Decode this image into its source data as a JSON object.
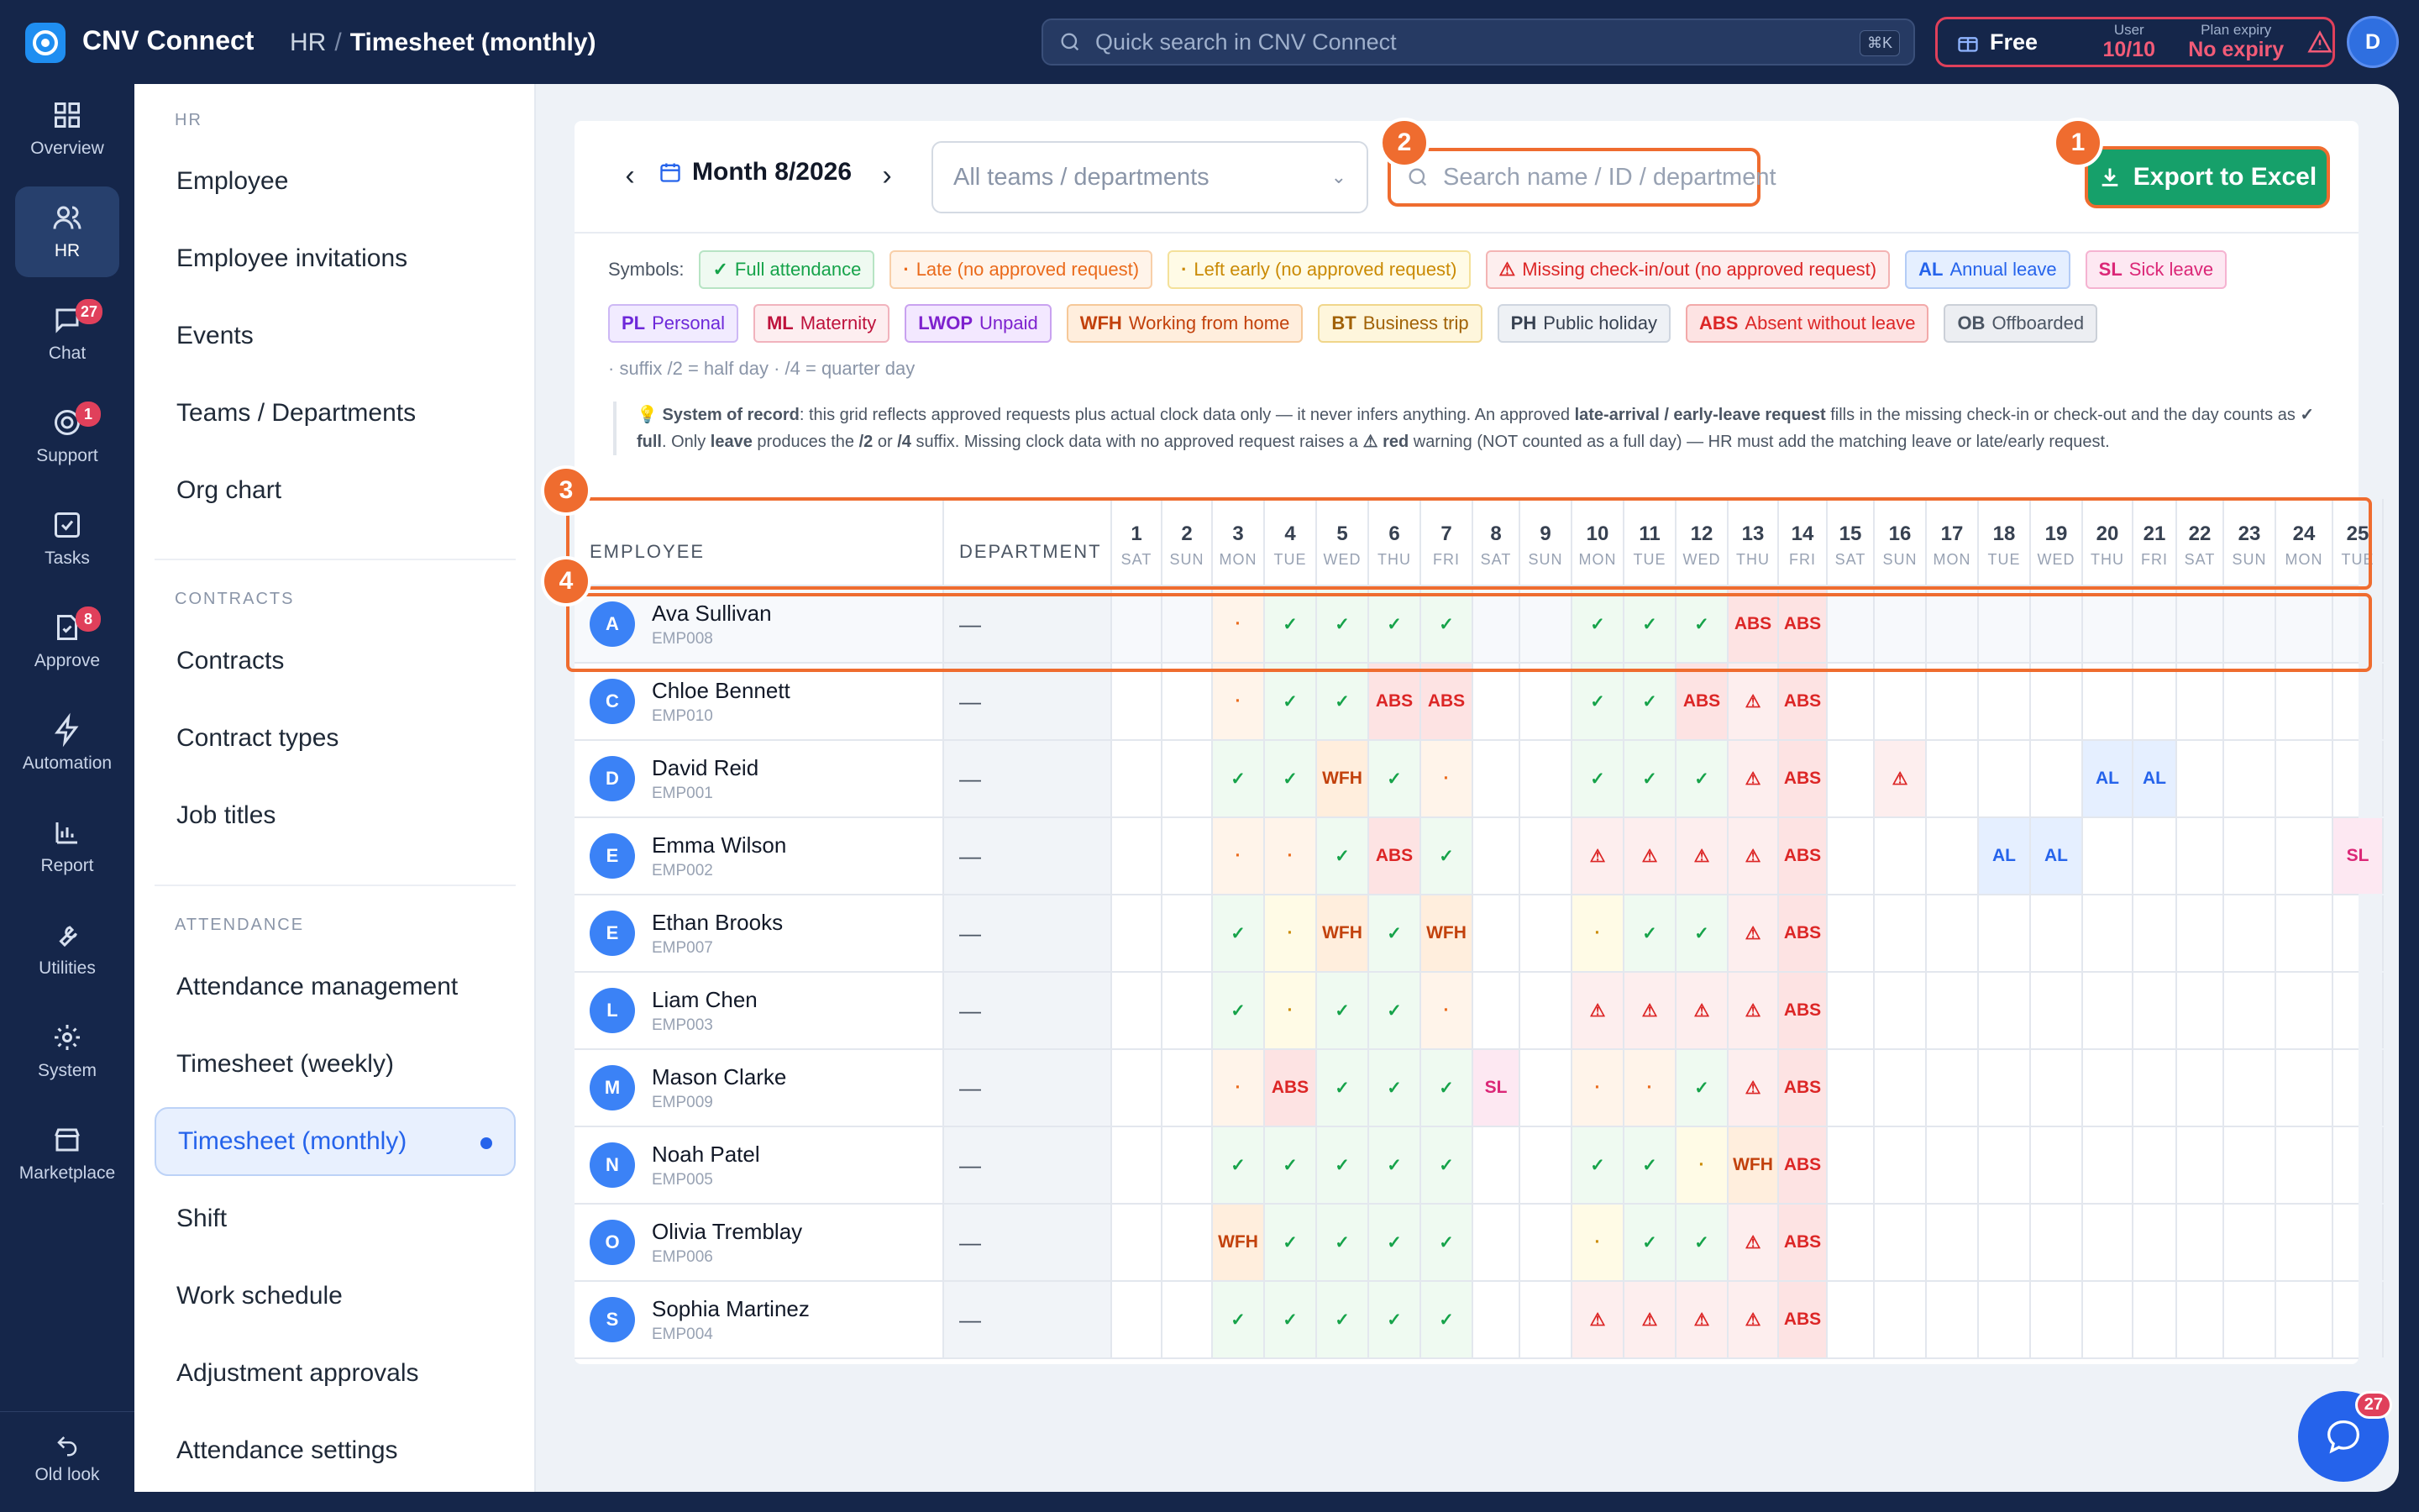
{
  "app": {
    "name": "CNV Connect",
    "breadcrumb": [
      "HR",
      "Timesheet (monthly)"
    ]
  },
  "topbar": {
    "search_placeholder": "Quick search in CNV Connect",
    "search_kbd": "⌘K",
    "plan": "Free",
    "user_label": "User",
    "user_value": "10/10",
    "expiry_label": "Plan expiry",
    "expiry_value": "No expiry",
    "avatar": "D"
  },
  "rail": [
    {
      "label": "Overview",
      "icon": "grid-icon"
    },
    {
      "label": "HR",
      "icon": "users-icon",
      "active": true
    },
    {
      "label": "Chat",
      "icon": "chat-icon",
      "badge": "27"
    },
    {
      "label": "Support",
      "icon": "support-icon",
      "badge": "1"
    },
    {
      "label": "Tasks",
      "icon": "task-icon"
    },
    {
      "label": "Approve",
      "icon": "approve-icon",
      "badge": "8"
    },
    {
      "label": "Automation",
      "icon": "bolt-icon"
    },
    {
      "label": "Report",
      "icon": "chart-icon"
    },
    {
      "label": "Utilities",
      "icon": "wrench-icon"
    },
    {
      "label": "System",
      "icon": "gear-icon"
    },
    {
      "label": "Marketplace",
      "icon": "store-icon"
    }
  ],
  "old_look": "Old look",
  "sidebar": {
    "sections": [
      {
        "title": "HR",
        "items": [
          "Employee",
          "Employee invitations",
          "Events",
          "Teams / Departments",
          "Org chart"
        ]
      },
      {
        "title": "CONTRACTS",
        "items": [
          "Contracts",
          "Contract types",
          "Job titles"
        ]
      },
      {
        "title": "ATTENDANCE",
        "items": [
          "Attendance management",
          "Timesheet (weekly)",
          "Timesheet (monthly)",
          "Shift",
          "Work schedule",
          "Adjustment approvals",
          "Attendance settings"
        ]
      }
    ],
    "active": "Timesheet (monthly)"
  },
  "toolbar": {
    "month": "Month 8/2026",
    "team_select": "All teams / departments",
    "search_placeholder": "Search name / ID / department",
    "export": "Export to Excel"
  },
  "callouts": [
    "1",
    "2",
    "3",
    "4"
  ],
  "symbols_label": "Symbols:",
  "symbols": [
    {
      "code": "✓",
      "text": "Full attendance",
      "cls": "ok"
    },
    {
      "code": "·",
      "text": "Late (no approved request)",
      "cls": "late"
    },
    {
      "code": "·",
      "text": "Left early (no approved request)",
      "cls": "early"
    },
    {
      "code": "⚠",
      "text": "Missing check-in/out (no approved request)",
      "cls": "miss"
    },
    {
      "code": "AL",
      "text": "Annual leave",
      "cls": "al"
    },
    {
      "code": "SL",
      "text": "Sick leave",
      "cls": "sl"
    },
    {
      "code": "PL",
      "text": "Personal",
      "cls": "pl"
    },
    {
      "code": "ML",
      "text": "Maternity",
      "cls": "ml"
    },
    {
      "code": "LWOP",
      "text": "Unpaid",
      "cls": "lwop"
    },
    {
      "code": "WFH",
      "text": "Working from home",
      "cls": "wfh"
    },
    {
      "code": "BT",
      "text": "Business trip",
      "cls": "bt"
    },
    {
      "code": "PH",
      "text": "Public holiday",
      "cls": "ph"
    },
    {
      "code": "ABS",
      "text": "Absent without leave",
      "cls": "abs"
    },
    {
      "code": "OB",
      "text": "Offboarded",
      "cls": "ob"
    }
  ],
  "suffix_note": "· suffix /2 = half day · /4 = quarter day",
  "system_note": {
    "lead": "System of record",
    "t1": ": this grid reflects approved requests plus actual clock data only — it never infers anything. An approved ",
    "b1": "late-arrival / early-leave request",
    "t2": " fills in the missing check-in or check-out and the day counts as ",
    "b2": "✓ full",
    "t3": ". Only ",
    "b3": "leave",
    "t4": " produces the ",
    "b4": "/2",
    "t5": " or ",
    "b5": "/4",
    "t6": " suffix. Missing clock data with no approved request raises a ",
    "b6": "⚠ red",
    "t7": " warning (NOT counted as a full day) — HR must add the matching leave or late/early request."
  },
  "grid": {
    "col_employee": "EMPLOYEE",
    "col_department": "DEPARTMENT",
    "days": [
      [
        "1",
        "SAT"
      ],
      [
        "2",
        "SUN"
      ],
      [
        "3",
        "MON"
      ],
      [
        "4",
        "TUE"
      ],
      [
        "5",
        "WED"
      ],
      [
        "6",
        "THU"
      ],
      [
        "7",
        "FRI"
      ],
      [
        "8",
        "SAT"
      ],
      [
        "9",
        "SUN"
      ],
      [
        "10",
        "MON"
      ],
      [
        "11",
        "TUE"
      ],
      [
        "12",
        "WED"
      ],
      [
        "13",
        "THU"
      ],
      [
        "14",
        "FRI"
      ],
      [
        "15",
        "SAT"
      ],
      [
        "16",
        "SUN"
      ],
      [
        "17",
        "MON"
      ],
      [
        "18",
        "TUE"
      ],
      [
        "19",
        "WED"
      ],
      [
        "20",
        "THU"
      ],
      [
        "21",
        "FRI"
      ],
      [
        "22",
        "SAT"
      ],
      [
        "23",
        "SUN"
      ],
      [
        "24",
        "MON"
      ],
      [
        "25",
        "TUE"
      ]
    ],
    "rows": [
      {
        "initial": "A",
        "name": "Ava Sullivan",
        "id": "EMP008",
        "dept": "—",
        "cells": [
          "",
          "",
          "late",
          "ok",
          "ok",
          "ok",
          "ok",
          "",
          "",
          "ok",
          "ok",
          "ok",
          "ABS",
          "ABS",
          "",
          "",
          "",
          "",
          "",
          "",
          "",
          "",
          "",
          "",
          ""
        ]
      },
      {
        "initial": "C",
        "name": "Chloe Bennett",
        "id": "EMP010",
        "dept": "—",
        "cells": [
          "",
          "",
          "late",
          "ok",
          "ok",
          "ABS",
          "ABS",
          "",
          "",
          "ok",
          "ok",
          "ABS",
          "miss",
          "ABS",
          "",
          "",
          "",
          "",
          "",
          "",
          "",
          "",
          "",
          "",
          ""
        ]
      },
      {
        "initial": "D",
        "name": "David Reid",
        "id": "EMP001",
        "dept": "—",
        "cells": [
          "",
          "",
          "ok",
          "ok",
          "WFH",
          "ok",
          "late",
          "",
          "",
          "ok",
          "ok",
          "ok",
          "miss",
          "ABS",
          "",
          "miss",
          "",
          "",
          "",
          "AL",
          "AL",
          "",
          "",
          "",
          ""
        ]
      },
      {
        "initial": "E",
        "name": "Emma Wilson",
        "id": "EMP002",
        "dept": "—",
        "cells": [
          "",
          "",
          "late",
          "late",
          "ok",
          "ABS",
          "ok",
          "",
          "",
          "miss",
          "miss",
          "miss",
          "miss",
          "ABS",
          "",
          "",
          "",
          "AL",
          "AL",
          "",
          "",
          "",
          "",
          "",
          "SL"
        ]
      },
      {
        "initial": "E",
        "name": "Ethan Brooks",
        "id": "EMP007",
        "dept": "—",
        "cells": [
          "",
          "",
          "ok",
          "early",
          "WFH",
          "ok",
          "WFH",
          "",
          "",
          "early",
          "ok",
          "ok",
          "miss",
          "ABS",
          "",
          "",
          "",
          "",
          "",
          "",
          "",
          "",
          "",
          "",
          ""
        ]
      },
      {
        "initial": "L",
        "name": "Liam Chen",
        "id": "EMP003",
        "dept": "—",
        "cells": [
          "",
          "",
          "ok",
          "early",
          "ok",
          "ok",
          "late",
          "",
          "",
          "miss",
          "miss",
          "miss",
          "miss",
          "ABS",
          "",
          "",
          "",
          "",
          "",
          "",
          "",
          "",
          "",
          "",
          ""
        ]
      },
      {
        "initial": "M",
        "name": "Mason Clarke",
        "id": "EMP009",
        "dept": "—",
        "cells": [
          "",
          "",
          "late",
          "ABS",
          "ok",
          "ok",
          "ok",
          "SL",
          "",
          "late",
          "late",
          "ok",
          "miss",
          "ABS",
          "",
          "",
          "",
          "",
          "",
          "",
          "",
          "",
          "",
          "",
          ""
        ]
      },
      {
        "initial": "N",
        "name": "Noah Patel",
        "id": "EMP005",
        "dept": "—",
        "cells": [
          "",
          "",
          "ok",
          "ok",
          "ok",
          "ok",
          "ok",
          "",
          "",
          "ok",
          "ok",
          "early",
          "WFH",
          "ABS",
          "",
          "",
          "",
          "",
          "",
          "",
          "",
          "",
          "",
          "",
          ""
        ]
      },
      {
        "initial": "O",
        "name": "Olivia Tremblay",
        "id": "EMP006",
        "dept": "—",
        "cells": [
          "",
          "",
          "WFH",
          "ok",
          "ok",
          "ok",
          "ok",
          "",
          "",
          "early",
          "ok",
          "ok",
          "miss",
          "ABS",
          "",
          "",
          "",
          "",
          "",
          "",
          "",
          "",
          "",
          "",
          ""
        ]
      },
      {
        "initial": "S",
        "name": "Sophia Martinez",
        "id": "EMP004",
        "dept": "—",
        "cells": [
          "",
          "",
          "ok",
          "ok",
          "ok",
          "ok",
          "ok",
          "",
          "",
          "miss",
          "miss",
          "miss",
          "miss",
          "ABS",
          "",
          "",
          "",
          "",
          "",
          "",
          "",
          "",
          "",
          "",
          ""
        ]
      }
    ]
  },
  "chat_fab_badge": "27"
}
